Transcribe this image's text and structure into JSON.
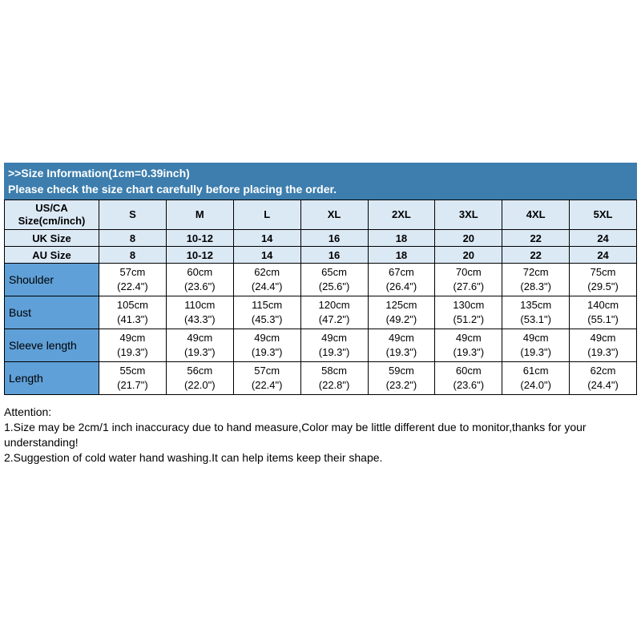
{
  "banner": {
    "line1": ">>Size Information(1cm=0.39inch)",
    "line2": "Please check the size chart carefully before placing the order."
  },
  "table": {
    "header": {
      "label": "US/CA\nSize(cm/inch)",
      "sizes": [
        "S",
        "M",
        "L",
        "XL",
        "2XL",
        "3XL",
        "4XL",
        "5XL"
      ]
    },
    "uk_row": {
      "label": "UK Size",
      "values": [
        "8",
        "10-12",
        "14",
        "16",
        "18",
        "20",
        "22",
        "24"
      ]
    },
    "au_row": {
      "label": "AU Size",
      "values": [
        "8",
        "10-12",
        "14",
        "16",
        "18",
        "20",
        "22",
        "24"
      ]
    },
    "measure_rows": [
      {
        "label": "Shoulder",
        "values": [
          "57cm\n(22.4\")",
          "60cm\n(23.6\")",
          "62cm\n(24.4\")",
          "65cm\n(25.6\")",
          "67cm\n(26.4\")",
          "70cm\n(27.6\")",
          "72cm\n(28.3\")",
          "75cm\n(29.5\")"
        ]
      },
      {
        "label": "Bust",
        "values": [
          "105cm\n(41.3\")",
          "110cm\n(43.3\")",
          "115cm\n(45.3\")",
          "120cm\n(47.2\")",
          "125cm\n(49.2\")",
          "130cm\n(51.2\")",
          "135cm\n(53.1\")",
          "140cm\n(55.1\")"
        ]
      },
      {
        "label": "Sleeve length",
        "values": [
          "49cm\n(19.3\")",
          "49cm\n(19.3\")",
          "49cm\n(19.3\")",
          "49cm\n(19.3\")",
          "49cm\n(19.3\")",
          "49cm\n(19.3\")",
          "49cm\n(19.3\")",
          "49cm\n(19.3\")"
        ]
      },
      {
        "label": "Length",
        "values": [
          "55cm\n(21.7\")",
          "56cm\n(22.0\")",
          "57cm\n(22.4\")",
          "58cm\n(22.8\")",
          "59cm\n(23.2\")",
          "60cm\n(23.6\")",
          "61cm\n(24.0\")",
          "62cm\n(24.4\")"
        ]
      }
    ]
  },
  "attention": {
    "title": "Attention:",
    "line1": "1.Size may be 2cm/1 inch inaccuracy due to hand measure,Color may be little different due to monitor,thanks for your understanding!",
    "line2": "2.Suggestion of cold water hand washing.It can help items keep their shape."
  },
  "colors": {
    "banner_bg": "#3d7eae",
    "header_bg": "#dbe9f5",
    "label_bg": "#5fa0d8",
    "border": "#000000"
  }
}
